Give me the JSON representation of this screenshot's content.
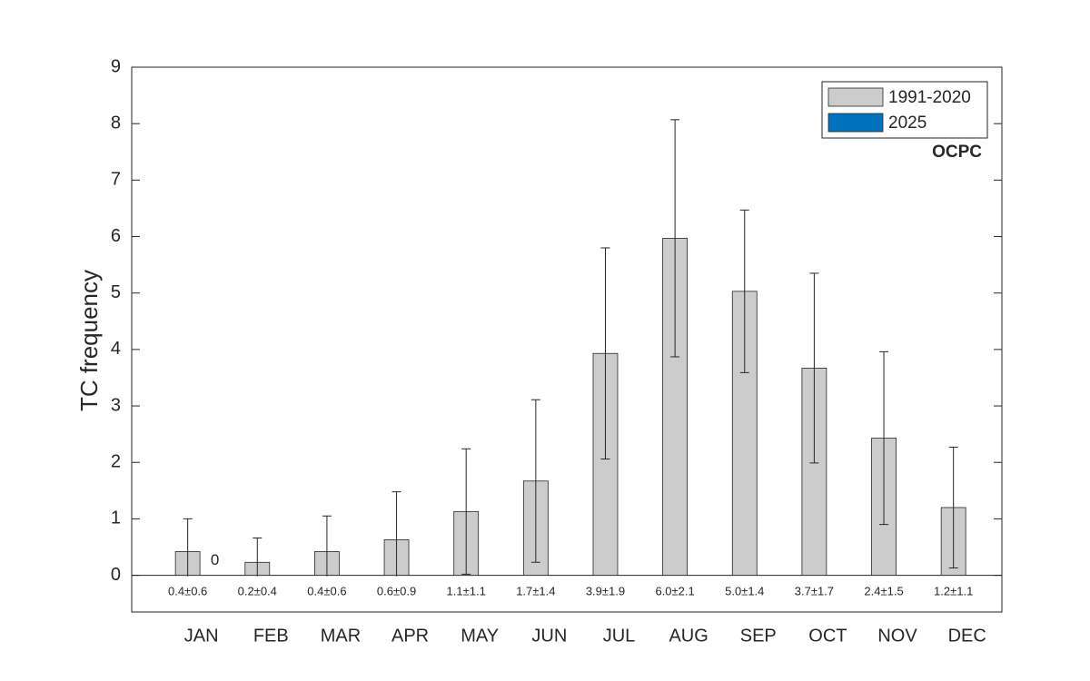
{
  "chart_data": {
    "type": "bar",
    "y_label": "TC frequency",
    "watermark": "OCPC",
    "categories": [
      "JAN",
      "FEB",
      "MAR",
      "APR",
      "MAY",
      "JUN",
      "JUL",
      "AUG",
      "SEP",
      "OCT",
      "NOV",
      "DEC"
    ],
    "series": [
      {
        "name": "1991-2020",
        "color": "#cccccc",
        "values": [
          0.42,
          0.23,
          0.42,
          0.63,
          1.13,
          1.67,
          3.93,
          5.97,
          5.03,
          3.67,
          2.43,
          1.2
        ],
        "errors": [
          0.58,
          0.43,
          0.63,
          0.85,
          1.11,
          1.44,
          1.87,
          2.1,
          1.44,
          1.68,
          1.53,
          1.07
        ],
        "value_labels": [
          "0.4±0.6",
          "0.2±0.4",
          "0.4±0.6",
          "0.6±0.9",
          "1.1±1.1",
          "1.7±1.4",
          "3.9±1.9",
          "6.0±2.1",
          "5.0±1.4",
          "3.7±1.7",
          "2.4±1.5",
          "1.2±1.1"
        ]
      },
      {
        "name": "2025",
        "color": "#0072bd",
        "values": [
          0,
          null,
          null,
          null,
          null,
          null,
          null,
          null,
          null,
          null,
          null,
          null
        ]
      }
    ],
    "ylim": [
      -0.65,
      9
    ],
    "yticks": [
      0,
      1,
      2,
      3,
      4,
      5,
      6,
      7,
      8,
      9
    ],
    "legend": "upper right"
  }
}
